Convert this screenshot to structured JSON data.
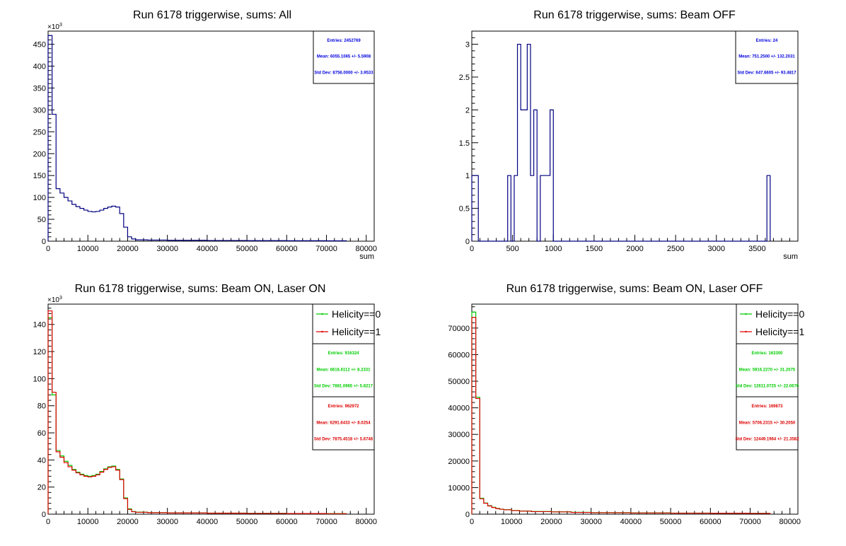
{
  "colors": {
    "all": "#000080",
    "helicity0": "#00cc00",
    "helicity1": "#e00000",
    "axis": "#000000",
    "stat_all": "#0000dd",
    "stat_h0": "#00cc00",
    "stat_h1": "#dd0000"
  },
  "chart_data": [
    {
      "type": "histogram",
      "title": "Run 6178 triggerwise, sums: All",
      "xlabel": "sum",
      "ylabel": "",
      "xlim": [
        0,
        82000
      ],
      "ylim": [
        0,
        480000
      ],
      "y_exponent_label": "×10",
      "y_exponent_power": "3",
      "x_ticks": [
        0,
        10000,
        20000,
        30000,
        40000,
        50000,
        60000,
        70000,
        80000
      ],
      "x_tick_labels": [
        "0",
        "10000",
        "20000",
        "30000",
        "40000",
        "50000",
        "60000",
        "70000",
        "80000"
      ],
      "y_ticks": [
        0,
        50000,
        100000,
        150000,
        200000,
        250000,
        300000,
        350000,
        400000,
        450000
      ],
      "y_tick_labels": [
        "0",
        "50",
        "100",
        "150",
        "200",
        "250",
        "300",
        "350",
        "400",
        "450"
      ],
      "legend": [],
      "series": [
        {
          "x": [
            0,
            1000,
            2000,
            3000,
            4000,
            5000,
            6000,
            7000,
            8000,
            9000,
            10000,
            11000,
            12000,
            13000,
            14000,
            15000,
            16000,
            17000,
            18000,
            19000,
            20000,
            21000,
            22000,
            25000,
            30000,
            40000,
            50000,
            60000,
            70000,
            75000
          ],
          "values": [
            470000,
            290000,
            120000,
            110000,
            100000,
            92000,
            84000,
            79000,
            75000,
            71000,
            68000,
            67000,
            68000,
            71000,
            75000,
            78000,
            80000,
            78000,
            63000,
            32000,
            10000,
            5000,
            3000,
            2500,
            2000,
            1500,
            1200,
            1000,
            800,
            0
          ]
        }
      ],
      "stats": [
        {
          "entries_label": "Entries:",
          "entries_value": "2452769",
          "mean_label": "Mean:",
          "mean_value": "6055.1065 +/- 5.5908",
          "std_label": "Std Dev:",
          "std_value": "8756.0000 +/- 3.9533"
        }
      ]
    },
    {
      "type": "histogram",
      "title": "Run 6178 triggerwise, sums: Beam OFF",
      "xlabel": "sum",
      "ylabel": "",
      "xlim": [
        0,
        4000
      ],
      "ylim": [
        0,
        3.2
      ],
      "y_exponent_label": "",
      "y_exponent_power": "",
      "x_ticks": [
        0,
        500,
        1000,
        1500,
        2000,
        2500,
        3000,
        3500
      ],
      "x_tick_labels": [
        "0",
        "500",
        "1000",
        "1500",
        "2000",
        "2500",
        "3000",
        "3500"
      ],
      "y_ticks": [
        0,
        0.5,
        1,
        1.5,
        2,
        2.5,
        3
      ],
      "y_tick_labels": [
        "0",
        "0.5",
        "1",
        "1.5",
        "2",
        "2.5",
        "3"
      ],
      "legend": [],
      "series": [
        {
          "x": [
            0,
            40,
            80,
            120,
            160,
            200,
            240,
            280,
            320,
            360,
            400,
            440,
            480,
            520,
            560,
            600,
            640,
            680,
            720,
            760,
            800,
            840,
            880,
            920,
            960,
            1000,
            3580,
            3620,
            3660
          ],
          "values": [
            1,
            1,
            0,
            0,
            0,
            0,
            0,
            0,
            0,
            0,
            0,
            1,
            0,
            1,
            3,
            2,
            2,
            3,
            1,
            2,
            0,
            1,
            1,
            1,
            2,
            0,
            0,
            1,
            0
          ]
        }
      ],
      "stats": [
        {
          "entries_label": "Entries:",
          "entries_value": "24",
          "mean_label": "Mean:",
          "mean_value": "751.2500 +/- 132.2031",
          "std_label": "Std Dev:",
          "std_value": "647.6605 +/- 93.4817"
        }
      ]
    },
    {
      "type": "histogram",
      "title": "Run 6178 triggerwise, sums: Beam ON, Laser ON",
      "xlabel": "",
      "ylabel": "",
      "xlim": [
        0,
        82000
      ],
      "ylim": [
        0,
        155000
      ],
      "y_exponent_label": "×10",
      "y_exponent_power": "3",
      "x_ticks": [
        0,
        10000,
        20000,
        30000,
        40000,
        50000,
        60000,
        70000,
        80000
      ],
      "x_tick_labels": [
        "0",
        "10000",
        "20000",
        "30000",
        "40000",
        "50000",
        "60000",
        "70000",
        "80000"
      ],
      "y_ticks": [
        0,
        20000,
        40000,
        60000,
        80000,
        100000,
        120000,
        140000
      ],
      "y_tick_labels": [
        "0",
        "20",
        "40",
        "60",
        "80",
        "100",
        "120",
        "140"
      ],
      "legend": [
        {
          "label": "Helicity==0",
          "color_key": "helicity0"
        },
        {
          "label": "Helicity==1",
          "color_key": "helicity1"
        }
      ],
      "series": [
        {
          "name": "Helicity==0",
          "x": [
            0,
            1000,
            2000,
            3000,
            4000,
            5000,
            6000,
            7000,
            8000,
            9000,
            10000,
            11000,
            12000,
            13000,
            14000,
            15000,
            16000,
            17000,
            18000,
            19000,
            20000,
            21000,
            22000,
            25000,
            30000,
            40000,
            50000,
            60000,
            70000,
            75000
          ],
          "values": [
            145000,
            88000,
            47000,
            43000,
            39000,
            36000,
            33000,
            31000,
            29500,
            28500,
            28000,
            28500,
            29500,
            31500,
            33500,
            35000,
            35500,
            33000,
            26000,
            12000,
            4000,
            2000,
            1500,
            1200,
            1000,
            800,
            600,
            500,
            400,
            0
          ]
        },
        {
          "name": "Helicity==1",
          "x": [
            0,
            1000,
            2000,
            3000,
            4000,
            5000,
            6000,
            7000,
            8000,
            9000,
            10000,
            11000,
            12000,
            13000,
            14000,
            15000,
            16000,
            17000,
            18000,
            19000,
            20000,
            21000,
            22000,
            25000,
            30000,
            40000,
            50000,
            60000,
            70000,
            75000
          ],
          "values": [
            150000,
            90000,
            46000,
            42000,
            38000,
            35000,
            32500,
            30500,
            29000,
            28000,
            27500,
            28000,
            29000,
            31000,
            33000,
            34500,
            35000,
            32500,
            25500,
            11500,
            3500,
            1800,
            1400,
            1100,
            900,
            700,
            550,
            450,
            350,
            0
          ]
        }
      ],
      "stats": [
        {
          "color_key": "stat_h0",
          "entries_label": "Entries:",
          "entries_value": "916324",
          "mean_label": "Mean:",
          "mean_value": "6616.6112 +/- 8.2331",
          "std_label": "Std Dev:",
          "std_value": "7881.0965 +/- 5.8217"
        },
        {
          "color_key": "stat_h1",
          "entries_label": "Entries:",
          "entries_value": "962972",
          "mean_label": "Mean:",
          "mean_value": "6291.6433 +/- 8.0254",
          "std_label": "Std Dev:",
          "std_value": "7875.4518 +/- 5.6748"
        }
      ]
    },
    {
      "type": "histogram",
      "title": "Run 6178 triggerwise, sums: Beam ON, Laser OFF",
      "xlabel": "",
      "ylabel": "",
      "xlim": [
        0,
        82000
      ],
      "ylim": [
        0,
        79000
      ],
      "y_exponent_label": "",
      "y_exponent_power": "",
      "x_ticks": [
        0,
        10000,
        20000,
        30000,
        40000,
        50000,
        60000,
        70000,
        80000
      ],
      "x_tick_labels": [
        "0",
        "10000",
        "20000",
        "30000",
        "40000",
        "50000",
        "60000",
        "70000",
        "80000"
      ],
      "y_ticks": [
        0,
        10000,
        20000,
        30000,
        40000,
        50000,
        60000,
        70000
      ],
      "y_tick_labels": [
        "0",
        "10000",
        "20000",
        "30000",
        "40000",
        "50000",
        "60000",
        "70000"
      ],
      "legend": [
        {
          "label": "Helicity==0",
          "color_key": "helicity0"
        },
        {
          "label": "Helicity==1",
          "color_key": "helicity1"
        }
      ],
      "series": [
        {
          "name": "Helicity==0",
          "x": [
            0,
            1000,
            2000,
            3000,
            4000,
            5000,
            6000,
            7000,
            8000,
            10000,
            12000,
            15000,
            20000,
            25000,
            30000,
            40000,
            50000,
            60000,
            70000,
            75000
          ],
          "values": [
            76000,
            44000,
            6000,
            4200,
            3200,
            2600,
            2200,
            1900,
            1700,
            1400,
            1200,
            1000,
            900,
            700,
            600,
            500,
            400,
            350,
            300,
            0
          ]
        },
        {
          "name": "Helicity==1",
          "x": [
            0,
            1000,
            2000,
            3000,
            4000,
            5000,
            6000,
            7000,
            8000,
            10000,
            12000,
            15000,
            20000,
            25000,
            30000,
            40000,
            50000,
            60000,
            70000,
            75000
          ],
          "values": [
            74000,
            43500,
            5800,
            4100,
            3100,
            2500,
            2100,
            1850,
            1650,
            1350,
            1150,
            950,
            850,
            650,
            550,
            450,
            380,
            330,
            280,
            0
          ]
        }
      ],
      "stats": [
        {
          "color_key": "stat_h0",
          "entries_label": "Entries:",
          "entries_value": "163300",
          "mean_label": "Mean:",
          "mean_value": "5916.2270 +/- 31.2075",
          "std_label": "Std Dev:",
          "std_value": "12611.0725 +/- 22.0670"
        },
        {
          "color_key": "stat_h1",
          "entries_label": "Entries:",
          "entries_value": "169873",
          "mean_label": "Mean:",
          "mean_value": "5706.2315 +/- 30.2050",
          "std_label": "Std Dev:",
          "std_value": "12449.1964 +/- 21.3582"
        }
      ]
    }
  ]
}
